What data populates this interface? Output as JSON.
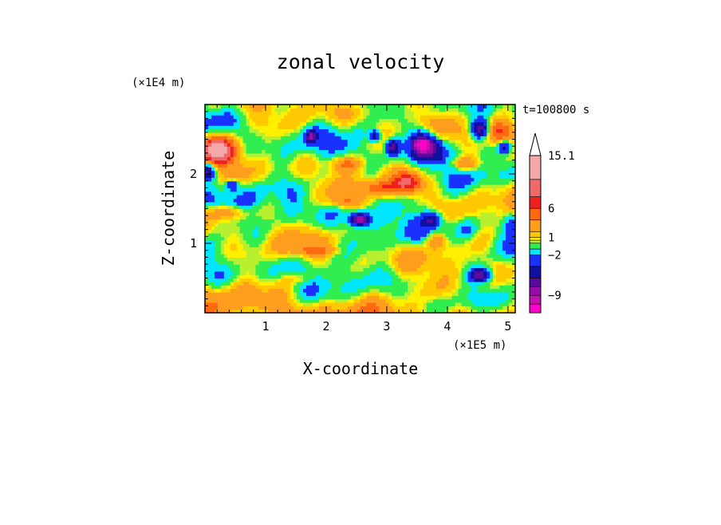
{
  "chart_data": {
    "type": "heatmap",
    "title": "zonal velocity",
    "xlabel": "X-coordinate",
    "ylabel": "Z-coordinate",
    "x_unit_label": "(×1E5 m)",
    "y_unit_label": "(×1E4 m)",
    "timestamp": "t=100800 s",
    "xlim": [
      0,
      5.12
    ],
    "ylim": [
      0,
      3.0
    ],
    "x_ticks": [
      {
        "value": 1,
        "label": "1"
      },
      {
        "value": 2,
        "label": "2"
      },
      {
        "value": 3,
        "label": "3"
      },
      {
        "value": 4,
        "label": "4"
      },
      {
        "value": 5,
        "label": "5"
      }
    ],
    "y_ticks": [
      {
        "value": 1,
        "label": "1"
      },
      {
        "value": 2,
        "label": "2"
      }
    ],
    "colorbar": {
      "levels": [
        {
          "min": -12,
          "max": -10.5,
          "color": "#ff00c8"
        },
        {
          "min": -10.5,
          "max": -9,
          "color": "#c40fb0"
        },
        {
          "min": -9,
          "max": -7.5,
          "color": "#9a0aa8"
        },
        {
          "min": -7.5,
          "max": -6,
          "color": "#5a0a9e"
        },
        {
          "min": -6,
          "max": -4,
          "color": "#1010a0"
        },
        {
          "min": -4,
          "max": -2,
          "color": "#1a30ff"
        },
        {
          "min": -2,
          "max": -1,
          "color": "#00e6ff"
        },
        {
          "min": -1,
          "max": 0,
          "color": "#30ee50"
        },
        {
          "min": 0,
          "max": 0.5,
          "color": "#b8f030"
        },
        {
          "min": 0.5,
          "max": 1,
          "color": "#fff000"
        },
        {
          "min": 1,
          "max": 2,
          "color": "#ffc800"
        },
        {
          "min": 2,
          "max": 4,
          "color": "#ff9e1e"
        },
        {
          "min": 4,
          "max": 6,
          "color": "#ff6a10"
        },
        {
          "min": 6,
          "max": 8,
          "color": "#f02020"
        },
        {
          "min": 8,
          "max": 11,
          "color": "#f06a6a"
        },
        {
          "min": 11,
          "max": 15.1,
          "color": "#f5a8a8"
        }
      ],
      "over_color": "#ffffff",
      "tick_labels": [
        {
          "value": 15.1,
          "label": "15.1"
        },
        {
          "value": 6,
          "label": "6"
        },
        {
          "value": 1,
          "label": "1"
        },
        {
          "value": -2,
          "label": "−2"
        },
        {
          "value": -9,
          "label": "−9"
        }
      ]
    },
    "grid": false
  }
}
